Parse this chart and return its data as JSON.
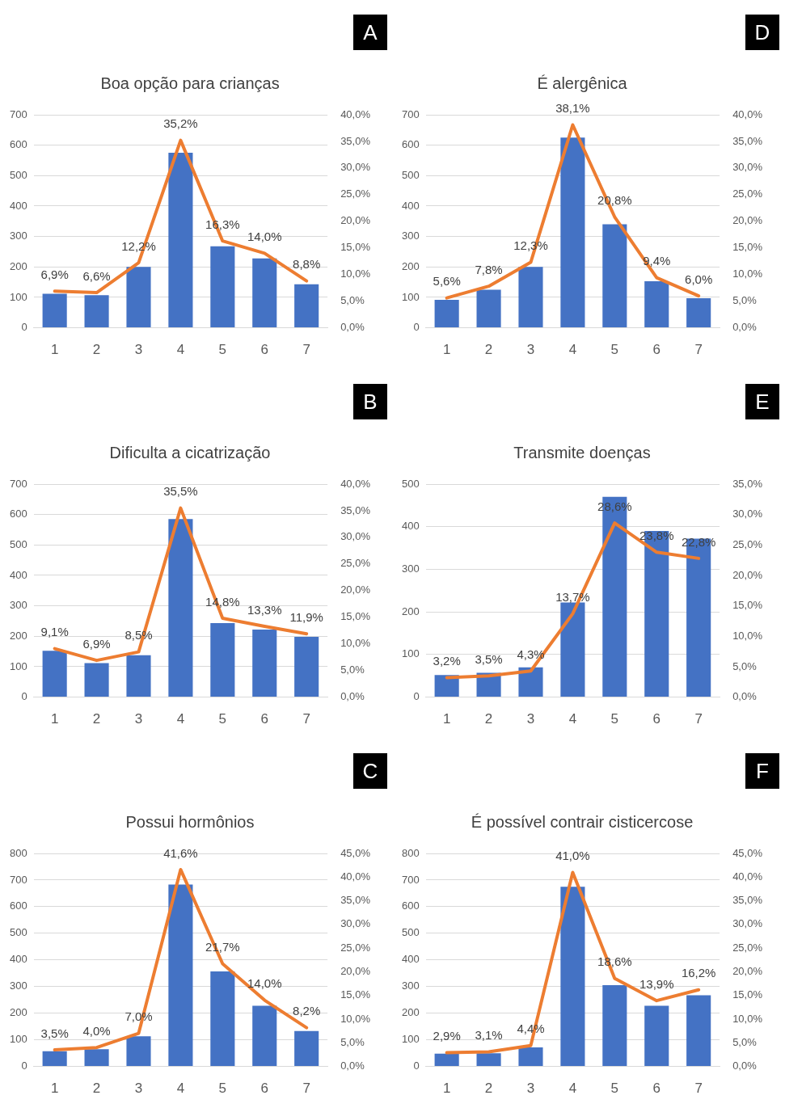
{
  "chart_data": [
    {
      "type": "bar",
      "title": "Boa opção para crianças",
      "annotations": [
        "A"
      ],
      "categories": [
        "1",
        "2",
        "3",
        "4",
        "5",
        "6",
        "7"
      ],
      "grid": "y",
      "marker": "none",
      "ylim": [
        0,
        700
      ],
      "yticks": [
        0,
        100,
        200,
        300,
        400,
        500,
        600,
        700
      ],
      "y2lim": [
        0,
        40
      ],
      "y2ticks": [
        {
          "value": 0,
          "label": "0,0%"
        },
        {
          "value": 5,
          "label": "5,0%"
        },
        {
          "value": 10,
          "label": "10,0%"
        },
        {
          "value": 15,
          "label": "15,0%"
        },
        {
          "value": 20,
          "label": "20,0%"
        },
        {
          "value": 25,
          "label": "25,0%"
        },
        {
          "value": 30,
          "label": "30,0%"
        },
        {
          "value": 35,
          "label": "35,0%"
        },
        {
          "value": 40,
          "label": "40,0%"
        }
      ],
      "series": [
        {
          "color": "#4472c4",
          "values": [
            112,
            107,
            200,
            575,
            268,
            228,
            143
          ]
        },
        {
          "type": "line",
          "axis": "y2",
          "color": "#ed7d31",
          "values": [
            6.9,
            6.6,
            12.2,
            35.2,
            16.3,
            14.0,
            8.8
          ],
          "value_labels": [
            "6,9%",
            "6,6%",
            "12,2%",
            "35,2%",
            "16,3%",
            "14,0%",
            "8,8%"
          ]
        }
      ]
    },
    {
      "type": "bar",
      "title": "É alergênica",
      "annotations": [
        "D"
      ],
      "categories": [
        "1",
        "2",
        "3",
        "4",
        "5",
        "6",
        "7"
      ],
      "grid": "y",
      "marker": "none",
      "ylim": [
        0,
        700
      ],
      "yticks": [
        0,
        100,
        200,
        300,
        400,
        500,
        600,
        700
      ],
      "y2lim": [
        0,
        40
      ],
      "y2ticks": [
        {
          "value": 0,
          "label": "0,0%"
        },
        {
          "value": 5,
          "label": "5,0%"
        },
        {
          "value": 10,
          "label": "10,0%"
        },
        {
          "value": 15,
          "label": "15,0%"
        },
        {
          "value": 20,
          "label": "20,0%"
        },
        {
          "value": 25,
          "label": "25,0%"
        },
        {
          "value": 30,
          "label": "30,0%"
        },
        {
          "value": 35,
          "label": "35,0%"
        },
        {
          "value": 40,
          "label": "40,0%"
        }
      ],
      "series": [
        {
          "color": "#4472c4",
          "values": [
            92,
            125,
            200,
            625,
            340,
            153,
            97
          ]
        },
        {
          "type": "line",
          "axis": "y2",
          "color": "#ed7d31",
          "values": [
            5.6,
            7.8,
            12.3,
            38.1,
            20.8,
            9.4,
            6.0
          ],
          "value_labels": [
            "5,6%",
            "7,8%",
            "12,3%",
            "38,1%",
            "20,8%",
            "9,4%",
            "6,0%"
          ]
        }
      ]
    },
    {
      "type": "bar",
      "title": "Dificulta a cicatrização",
      "annotations": [
        "B"
      ],
      "categories": [
        "1",
        "2",
        "3",
        "4",
        "5",
        "6",
        "7"
      ],
      "grid": "y",
      "marker": "none",
      "ylim": [
        0,
        700
      ],
      "yticks": [
        0,
        100,
        200,
        300,
        400,
        500,
        600,
        700
      ],
      "y2lim": [
        0,
        40
      ],
      "y2ticks": [
        {
          "value": 0,
          "label": "0,0%"
        },
        {
          "value": 5,
          "label": "5,0%"
        },
        {
          "value": 10,
          "label": "10,0%"
        },
        {
          "value": 15,
          "label": "15,0%"
        },
        {
          "value": 20,
          "label": "20,0%"
        },
        {
          "value": 25,
          "label": "25,0%"
        },
        {
          "value": 30,
          "label": "30,0%"
        },
        {
          "value": 35,
          "label": "35,0%"
        },
        {
          "value": 40,
          "label": "40,0%"
        }
      ],
      "series": [
        {
          "color": "#4472c4",
          "values": [
            152,
            112,
            138,
            585,
            243,
            222,
            198
          ]
        },
        {
          "type": "line",
          "axis": "y2",
          "color": "#ed7d31",
          "values": [
            9.1,
            6.9,
            8.5,
            35.5,
            14.8,
            13.3,
            11.9
          ],
          "value_labels": [
            "9,1%",
            "6,9%",
            "8,5%",
            "35,5%",
            "14,8%",
            "13,3%",
            "11,9%"
          ]
        }
      ]
    },
    {
      "type": "bar",
      "title": "Transmite doenças",
      "annotations": [
        "E"
      ],
      "categories": [
        "1",
        "2",
        "3",
        "4",
        "5",
        "6",
        "7"
      ],
      "grid": "y",
      "marker": "none",
      "ylim": [
        0,
        500
      ],
      "yticks": [
        0,
        100,
        200,
        300,
        400,
        500
      ],
      "y2lim": [
        0,
        35
      ],
      "y2ticks": [
        {
          "value": 0,
          "label": "0,0%"
        },
        {
          "value": 5,
          "label": "5,0%"
        },
        {
          "value": 10,
          "label": "10,0%"
        },
        {
          "value": 15,
          "label": "15,0%"
        },
        {
          "value": 20,
          "label": "20,0%"
        },
        {
          "value": 25,
          "label": "25,0%"
        },
        {
          "value": 30,
          "label": "30,0%"
        },
        {
          "value": 35,
          "label": "35,0%"
        }
      ],
      "series": [
        {
          "color": "#4472c4",
          "values": [
            52,
            57,
            70,
            222,
            470,
            390,
            372
          ]
        },
        {
          "type": "line",
          "axis": "y2",
          "color": "#ed7d31",
          "values": [
            3.2,
            3.5,
            4.3,
            13.7,
            28.6,
            23.8,
            22.8
          ],
          "value_labels": [
            "3,2%",
            "3,5%",
            "4,3%",
            "13,7%",
            "28,6%",
            "23,8%",
            "22,8%"
          ]
        }
      ]
    },
    {
      "type": "bar",
      "title": "Possui hormônios",
      "annotations": [
        "C"
      ],
      "categories": [
        "1",
        "2",
        "3",
        "4",
        "5",
        "6",
        "7"
      ],
      "grid": "y",
      "marker": "none",
      "ylim": [
        0,
        800
      ],
      "yticks": [
        0,
        100,
        200,
        300,
        400,
        500,
        600,
        700,
        800
      ],
      "y2lim": [
        0,
        45
      ],
      "y2ticks": [
        {
          "value": 0,
          "label": "0,0%"
        },
        {
          "value": 5,
          "label": "5,0%"
        },
        {
          "value": 10,
          "label": "10,0%"
        },
        {
          "value": 15,
          "label": "15,0%"
        },
        {
          "value": 20,
          "label": "20,0%"
        },
        {
          "value": 25,
          "label": "25,0%"
        },
        {
          "value": 30,
          "label": "30,0%"
        },
        {
          "value": 35,
          "label": "35,0%"
        },
        {
          "value": 40,
          "label": "40,0%"
        },
        {
          "value": 45,
          "label": "45,0%"
        }
      ],
      "series": [
        {
          "color": "#4472c4",
          "values": [
            57,
            65,
            113,
            683,
            357,
            228,
            133
          ]
        },
        {
          "type": "line",
          "axis": "y2",
          "color": "#ed7d31",
          "values": [
            3.5,
            4.0,
            7.0,
            41.6,
            21.7,
            14.0,
            8.2
          ],
          "value_labels": [
            "3,5%",
            "4,0%",
            "7,0%",
            "41,6%",
            "21,7%",
            "14,0%",
            "8,2%"
          ]
        }
      ]
    },
    {
      "type": "bar",
      "title": "É possível contrair cisticercose",
      "annotations": [
        "F"
      ],
      "categories": [
        "1",
        "2",
        "3",
        "4",
        "5",
        "6",
        "7"
      ],
      "grid": "y",
      "marker": "none",
      "ylim": [
        0,
        800
      ],
      "yticks": [
        0,
        100,
        200,
        300,
        400,
        500,
        600,
        700,
        800
      ],
      "y2lim": [
        0,
        45
      ],
      "y2ticks": [
        {
          "value": 0,
          "label": "0,0%"
        },
        {
          "value": 5,
          "label": "5,0%"
        },
        {
          "value": 10,
          "label": "10,0%"
        },
        {
          "value": 15,
          "label": "15,0%"
        },
        {
          "value": 20,
          "label": "20,0%"
        },
        {
          "value": 25,
          "label": "25,0%"
        },
        {
          "value": 30,
          "label": "30,0%"
        },
        {
          "value": 35,
          "label": "35,0%"
        },
        {
          "value": 40,
          "label": "40,0%"
        },
        {
          "value": 45,
          "label": "45,0%"
        }
      ],
      "series": [
        {
          "color": "#4472c4",
          "values": [
            48,
            50,
            72,
            675,
            305,
            228,
            267
          ]
        },
        {
          "type": "line",
          "axis": "y2",
          "color": "#ed7d31",
          "values": [
            2.9,
            3.1,
            4.4,
            41.0,
            18.6,
            13.9,
            16.2
          ],
          "value_labels": [
            "2,9%",
            "3,1%",
            "4,4%",
            "41,0%",
            "18,6%",
            "13,9%",
            "16,2%"
          ]
        }
      ]
    }
  ]
}
